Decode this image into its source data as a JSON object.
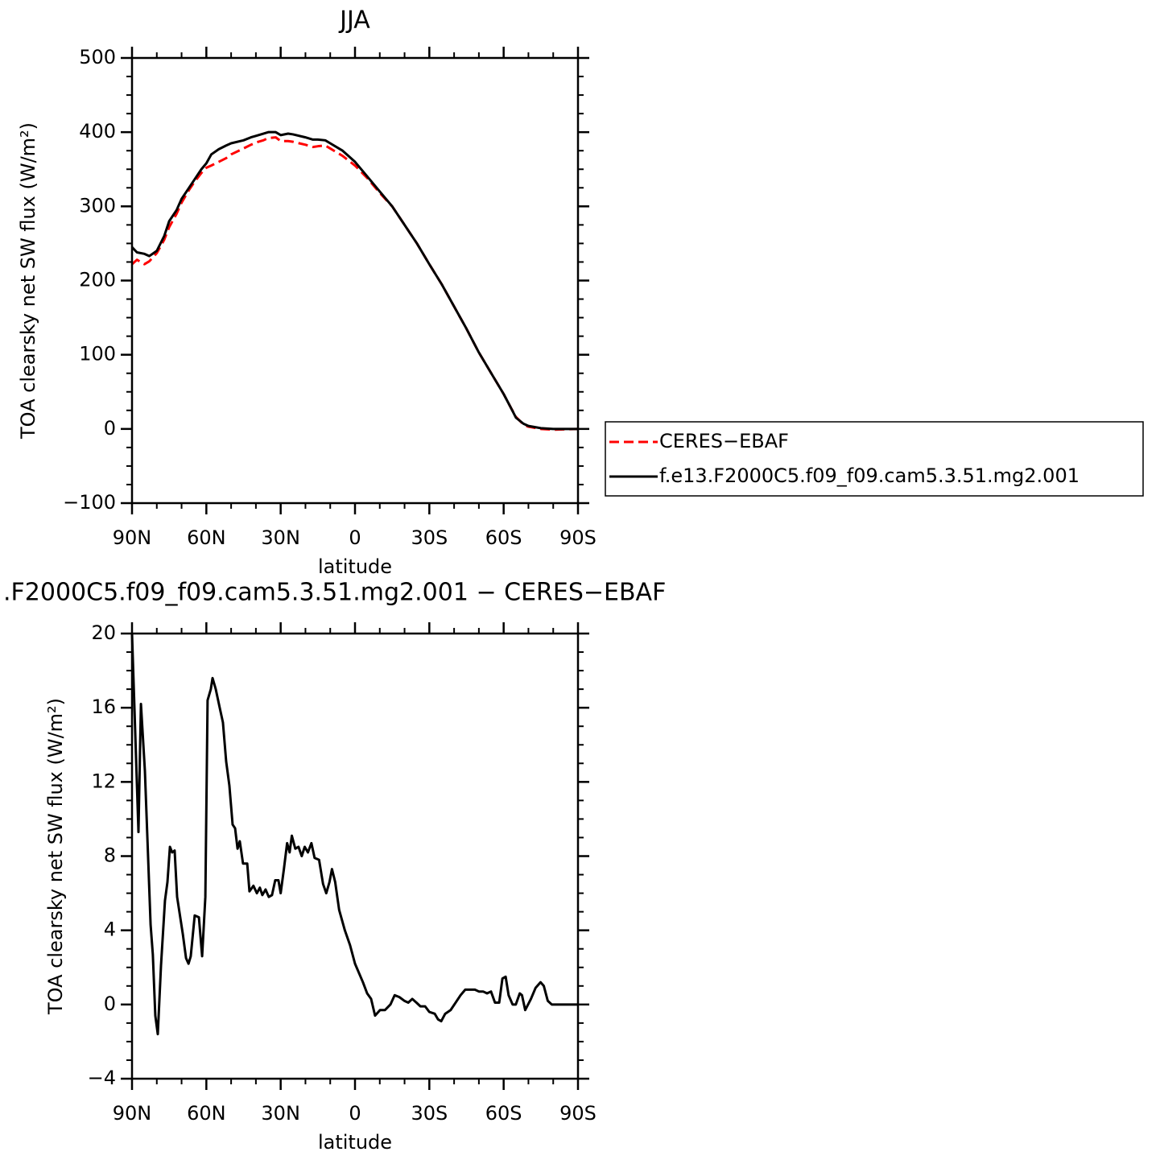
{
  "chart_data": [
    {
      "type": "line",
      "title": "JJA",
      "xlabel": "latitude",
      "ylabel": "TOA clearsky net SW flux (W/m²)",
      "xlim": [
        90,
        -90
      ],
      "xticks": [
        {
          "value": 90,
          "label": "90N"
        },
        {
          "value": 60,
          "label": "60N"
        },
        {
          "value": 30,
          "label": "30N"
        },
        0,
        {
          "value": -30,
          "label": "30S"
        },
        {
          "value": -60,
          "label": "60S"
        },
        {
          "value": -90,
          "label": "90S"
        }
      ],
      "ylim": [
        -100,
        500
      ],
      "yticks": [
        {
          "value": -100,
          "label": "−100"
        },
        0,
        100,
        200,
        300,
        400,
        500
      ],
      "legend_position": "right",
      "x": [
        90,
        88,
        85,
        83,
        80,
        77,
        75,
        72,
        70,
        67,
        65,
        62,
        60,
        58,
        55,
        52,
        50,
        45,
        42,
        40,
        37,
        35,
        32,
        30,
        27,
        25,
        20,
        17,
        15,
        12,
        10,
        5,
        0,
        -5,
        -10,
        -15,
        -20,
        -25,
        -30,
        -35,
        -40,
        -45,
        -50,
        -55,
        -60,
        -63,
        -65,
        -68,
        -70,
        -75,
        -80,
        -90
      ],
      "series": [
        {
          "name": "CERES−EBAF",
          "color": "#ff0000",
          "dashed": true,
          "values": [
            222,
            228,
            222,
            226,
            237,
            255,
            272,
            290,
            305,
            322,
            332,
            345,
            352,
            355,
            360,
            365,
            370,
            378,
            383,
            386,
            389,
            392,
            393,
            388,
            388,
            387,
            383,
            380,
            381,
            382,
            378,
            368,
            355,
            338,
            318,
            300,
            275,
            250,
            222,
            195,
            165,
            135,
            103,
            75,
            47,
            28,
            16,
            6,
            3,
            0,
            -1,
            0
          ]
        },
        {
          "name": "f.e13.F2000C5.f09_f09.cam5.3.51.mg2.001",
          "color": "#000000",
          "dashed": false,
          "values": [
            245,
            238,
            236,
            233,
            240,
            260,
            280,
            295,
            310,
            325,
            335,
            350,
            358,
            370,
            377,
            382,
            385,
            389,
            393,
            395,
            398,
            400,
            400,
            396,
            398,
            397,
            393,
            390,
            390,
            389,
            385,
            375,
            360,
            340,
            320,
            300,
            275,
            250,
            222,
            195,
            165,
            135,
            103,
            75,
            47,
            28,
            15,
            7,
            4,
            1,
            0,
            0
          ]
        }
      ]
    },
    {
      "type": "line",
      "title": ".F2000C5.f09_f09.cam5.3.51.mg2.001 − CERES−EBAF",
      "xlabel": "latitude",
      "ylabel": "TOA clearsky net SW flux (W/m²)",
      "xlim": [
        90,
        -90
      ],
      "xticks": [
        {
          "value": 90,
          "label": "90N"
        },
        {
          "value": 60,
          "label": "60N"
        },
        {
          "value": 30,
          "label": "30N"
        },
        0,
        {
          "value": -30,
          "label": "30S"
        },
        {
          "value": -60,
          "label": "60S"
        },
        {
          "value": -90,
          "label": "90S"
        }
      ],
      "ylim": [
        -4,
        20
      ],
      "yticks": [
        {
          "value": -4,
          "label": "−4"
        },
        0,
        4,
        8,
        12,
        16,
        20
      ],
      "color": "#000000",
      "x": [
        90,
        87.4,
        86.4,
        84.8,
        82.5,
        81.6,
        80.6,
        79.6,
        78.3,
        76.7,
        75.7,
        74.7,
        73.8,
        72.8,
        71.8,
        69.5,
        68.2,
        67.2,
        66.3,
        64.7,
        63.0,
        61.7,
        60.4,
        59.5,
        58.2,
        57.5,
        56.2,
        54.6,
        53.3,
        52.0,
        50.7,
        49.4,
        48.4,
        47.4,
        46.5,
        45.2,
        43.5,
        42.6,
        41.0,
        39.6,
        38.4,
        37.4,
        36.1,
        34.8,
        33.5,
        32.2,
        30.9,
        30.0,
        28.7,
        27.4,
        26.4,
        25.5,
        24.1,
        22.8,
        21.5,
        20.3,
        19.0,
        17.6,
        16.3,
        14.5,
        12.9,
        11.6,
        10.3,
        9.3,
        8.0,
        6.4,
        4.1,
        2.0,
        0,
        -3.2,
        -4.9,
        -6.5,
        -8.1,
        -10.1,
        -12.1,
        -14.3,
        -16.0,
        -17.9,
        -19.9,
        -21.5,
        -23.1,
        -24.8,
        -26.4,
        -28.3,
        -30.0,
        -32.2,
        -33.5,
        -34.8,
        -36.4,
        -38.6,
        -40.6,
        -42.6,
        -44.5,
        -46.5,
        -48.4,
        -50.0,
        -51.7,
        -53.3,
        -54.9,
        -56.5,
        -58.2,
        -59.5,
        -60.8,
        -62.0,
        -63.6,
        -64.9,
        -66.5,
        -67.4,
        -68.7,
        -71.0,
        -72.9,
        -74.9,
        -76.2,
        -77.8,
        -79.4,
        -84,
        -90
      ],
      "values": [
        20,
        9.3,
        16.2,
        12.6,
        4.3,
        2.7,
        -0.6,
        -1.6,
        2.1,
        5.6,
        6.6,
        8.5,
        8.2,
        8.3,
        5.8,
        3.8,
        2.5,
        2.2,
        2.6,
        4.8,
        4.7,
        2.6,
        5.8,
        16.4,
        17.0,
        17.6,
        17.0,
        16.0,
        15.2,
        13.1,
        11.8,
        9.7,
        9.5,
        8.4,
        8.8,
        7.6,
        7.6,
        6.1,
        6.4,
        6.0,
        6.3,
        5.9,
        6.2,
        5.8,
        5.9,
        6.7,
        6.7,
        6.0,
        7.3,
        8.7,
        8.2,
        9.1,
        8.4,
        8.5,
        8.0,
        8.5,
        8.2,
        8.7,
        7.9,
        7.8,
        6.5,
        6.0,
        6.6,
        7.3,
        6.6,
        5.1,
        4.0,
        3.2,
        2.2,
        1.2,
        0.6,
        0.3,
        -0.6,
        -0.3,
        -0.3,
        0.0,
        0.5,
        0.4,
        0.2,
        0.1,
        0.3,
        0.1,
        -0.1,
        -0.1,
        -0.4,
        -0.5,
        -0.8,
        -0.9,
        -0.5,
        -0.3,
        0.1,
        0.5,
        0.8,
        0.8,
        0.8,
        0.7,
        0.7,
        0.6,
        0.7,
        0.1,
        0.1,
        1.4,
        1.5,
        0.5,
        0.0,
        0.0,
        0.6,
        0.5,
        -0.3,
        0.3,
        0.9,
        1.2,
        1.0,
        0.2,
        0.0,
        0.0,
        0.0
      ]
    }
  ]
}
